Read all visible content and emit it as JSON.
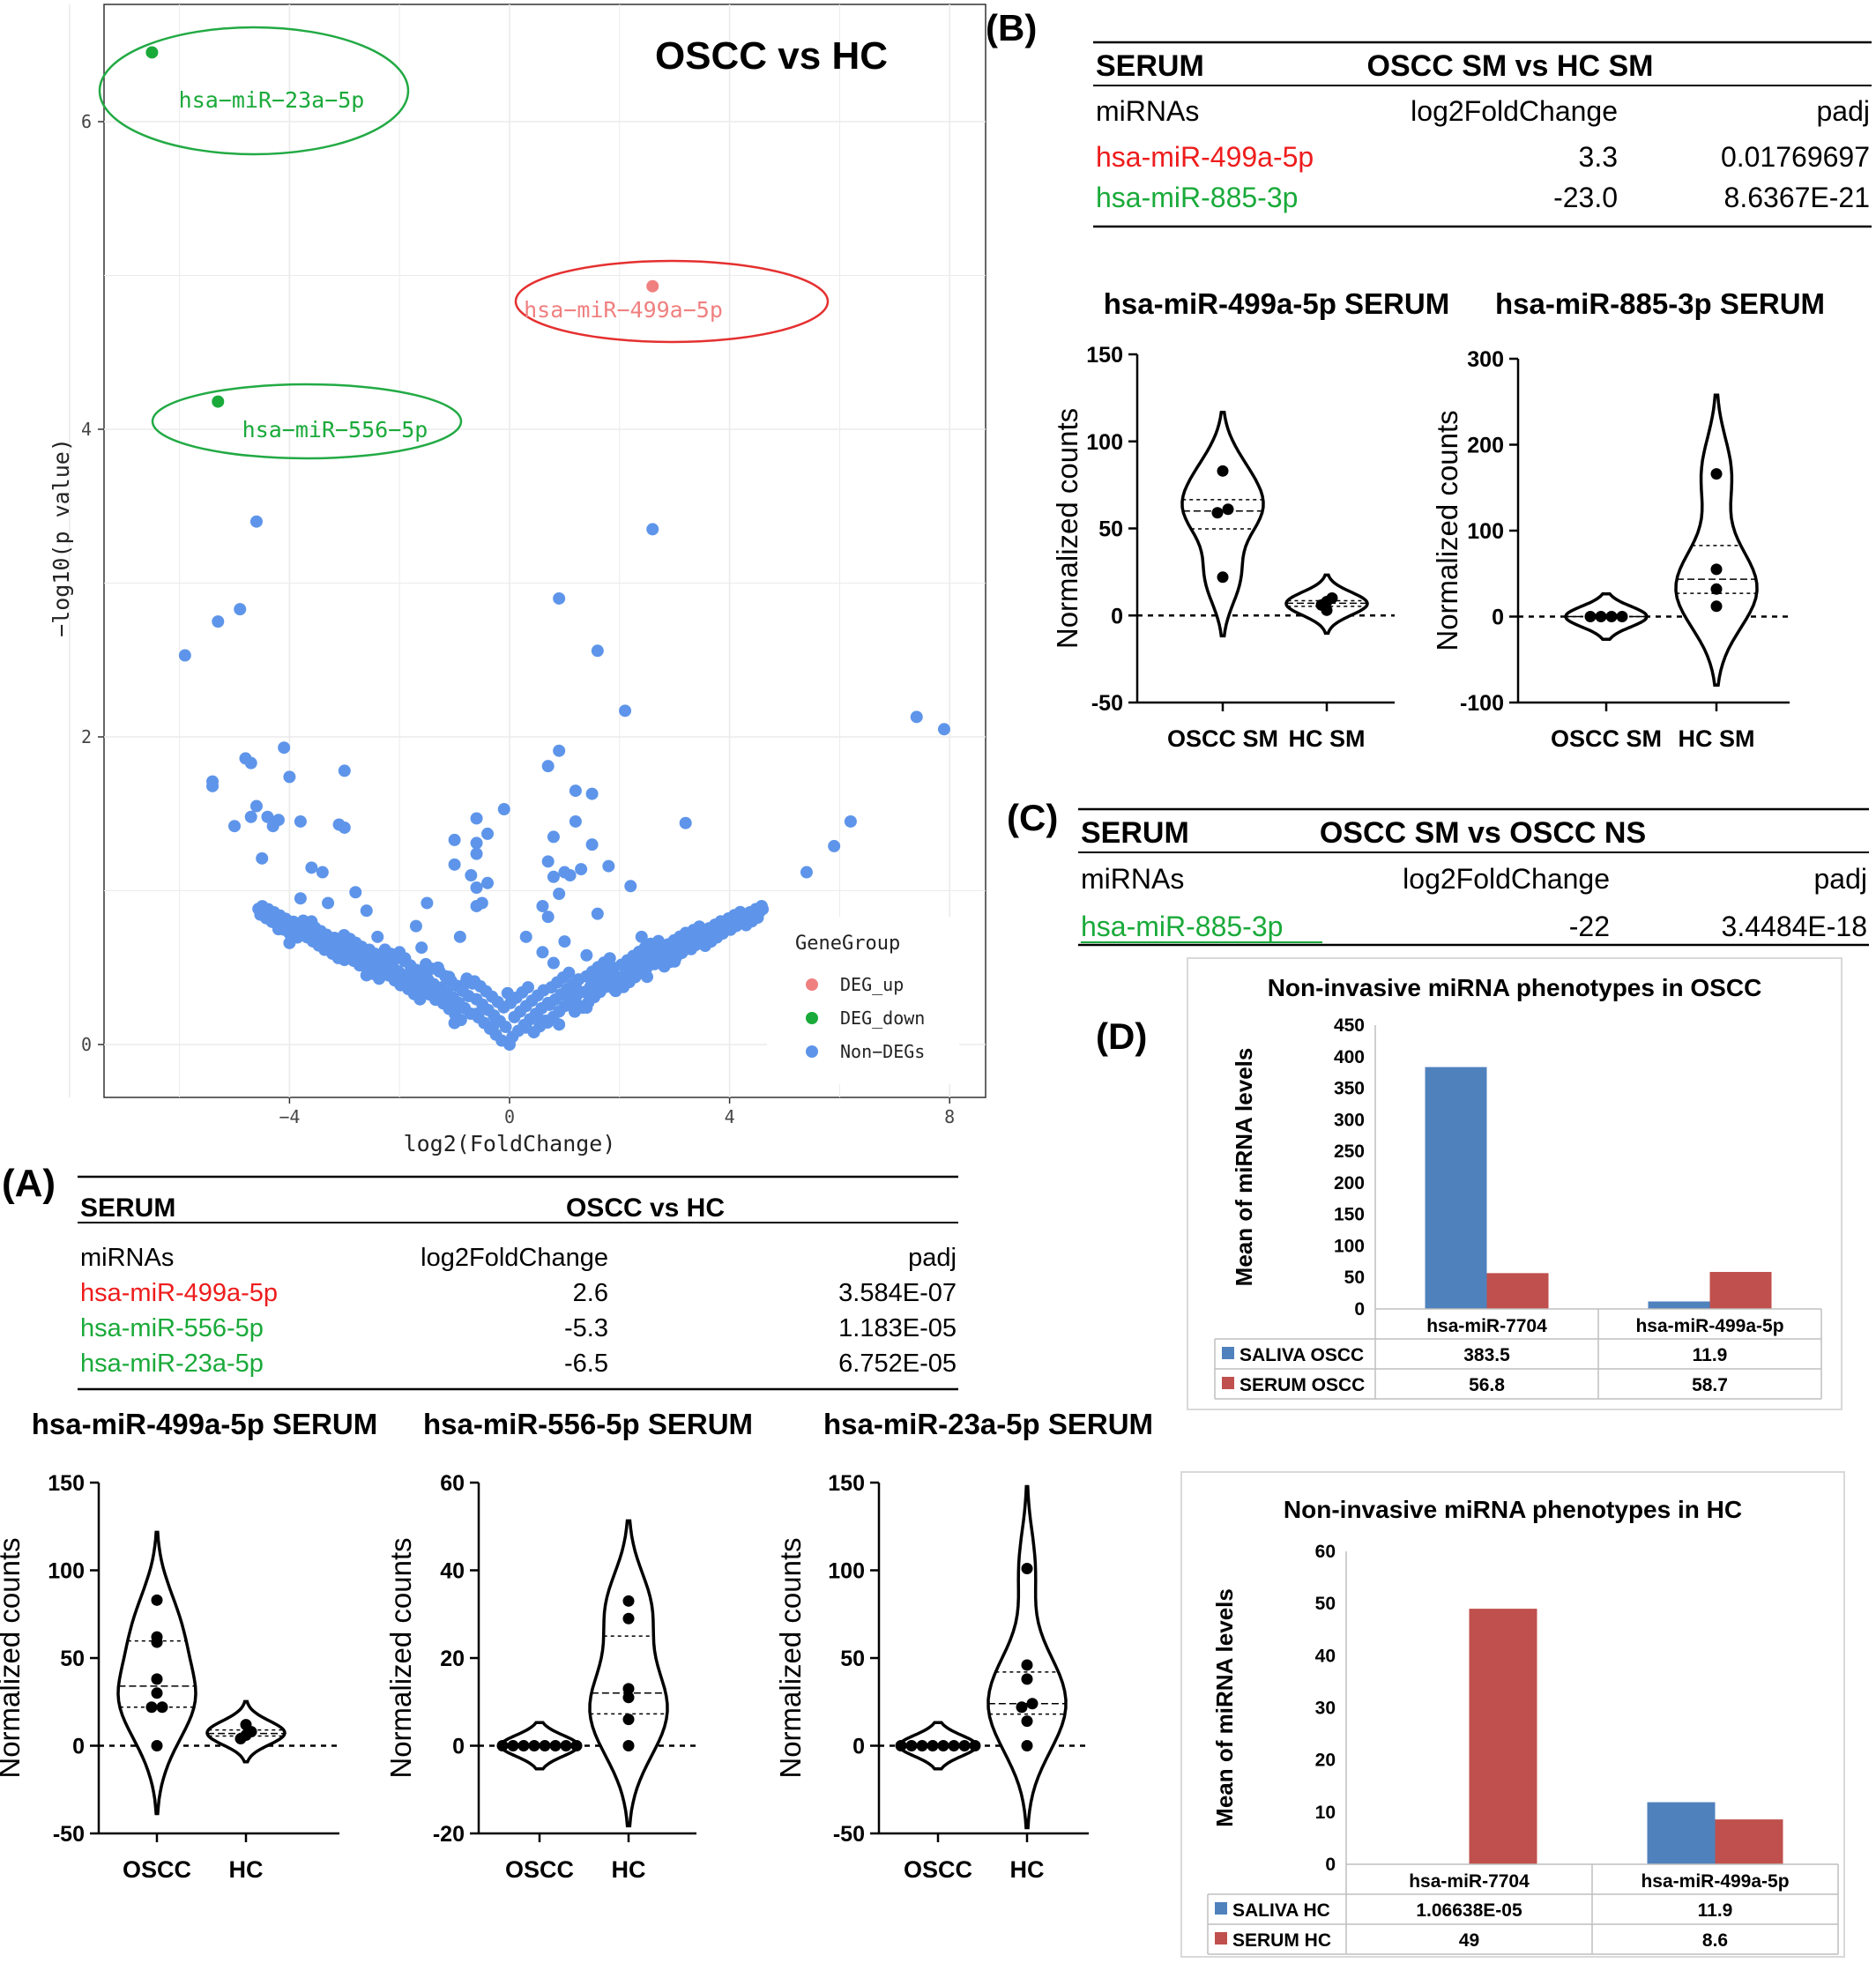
{
  "volcano": {
    "title": "OSCC vs HC",
    "xlabel": "log2(FoldChange)",
    "ylabel": "−log10(p value)",
    "xticks": [
      -4,
      0,
      4,
      8
    ],
    "yticks": [
      0,
      2,
      4,
      6
    ],
    "legend_title": "GeneGroup",
    "legend": [
      {
        "name": "DEG_up",
        "color": "#f08080"
      },
      {
        "name": "DEG_down",
        "color": "#1aaa3a"
      },
      {
        "name": "Non−DEGs",
        "color": "#5e95ea"
      }
    ],
    "labels": [
      {
        "text": "hsa−miR−23a−5p",
        "group": "down",
        "x": -6.5,
        "y": 6.45
      },
      {
        "text": "hsa−miR−499a−5p",
        "group": "up",
        "x": 2.6,
        "y": 4.93
      },
      {
        "text": "hsa−miR−556−5p",
        "group": "down",
        "x": -5.3,
        "y": 4.18
      }
    ],
    "nondeg_points": [
      [
        -4.6,
        3.4
      ],
      [
        2.6,
        3.35
      ],
      [
        0.9,
        2.9
      ],
      [
        -4.9,
        2.83
      ],
      [
        -5.3,
        2.75
      ],
      [
        -5.9,
        2.53
      ],
      [
        1.6,
        2.56
      ],
      [
        2.1,
        2.17
      ],
      [
        7.4,
        2.13
      ],
      [
        7.9,
        2.05
      ],
      [
        -4.1,
        1.93
      ],
      [
        0.9,
        1.91
      ],
      [
        -4.8,
        1.86
      ],
      [
        -4.7,
        1.83
      ],
      [
        0.7,
        1.81
      ],
      [
        -3.0,
        1.78
      ],
      [
        -5.4,
        1.71
      ],
      [
        -4.0,
        1.74
      ],
      [
        -5.4,
        1.68
      ],
      [
        1.2,
        1.65
      ],
      [
        1.5,
        1.63
      ],
      [
        -4.6,
        1.55
      ],
      [
        -0.1,
        1.53
      ],
      [
        -4.7,
        1.48
      ],
      [
        -4.4,
        1.48
      ],
      [
        -4.2,
        1.46
      ],
      [
        -3.8,
        1.45
      ],
      [
        -3.1,
        1.43
      ],
      [
        -5.0,
        1.42
      ],
      [
        -4.3,
        1.42
      ],
      [
        6.2,
        1.45
      ],
      [
        3.2,
        1.44
      ],
      [
        1.2,
        1.45
      ],
      [
        -3.0,
        1.41
      ],
      [
        -0.6,
        1.47
      ],
      [
        -0.4,
        1.37
      ],
      [
        0.8,
        1.35
      ],
      [
        -1.0,
        1.33
      ],
      [
        -0.6,
        1.31
      ],
      [
        5.9,
        1.29
      ],
      [
        -4.5,
        1.21
      ],
      [
        -0.6,
        1.24
      ],
      [
        1.5,
        1.3
      ],
      [
        -1.0,
        1.17
      ],
      [
        0.7,
        1.19
      ],
      [
        1.8,
        1.16
      ],
      [
        -3.6,
        1.15
      ],
      [
        5.4,
        1.12
      ],
      [
        -3.4,
        1.12
      ],
      [
        -0.7,
        1.1
      ],
      [
        0.8,
        1.09
      ],
      [
        1.3,
        1.14
      ],
      [
        2.2,
        1.03
      ],
      [
        -0.6,
        1.02
      ],
      [
        1.1,
        1.1
      ],
      [
        -0.4,
        1.05
      ],
      [
        -2.8,
        0.99
      ],
      [
        -0.6,
        0.9
      ],
      [
        0.9,
        0.98
      ],
      [
        1.0,
        1.12
      ],
      [
        0.6,
        0.9
      ],
      [
        -3.8,
        0.95
      ],
      [
        -3.3,
        0.92
      ],
      [
        -1.5,
        0.92
      ],
      [
        -0.5,
        0.92
      ],
      [
        0.7,
        0.83
      ],
      [
        1.6,
        0.85
      ],
      [
        -3.6,
        0.8
      ],
      [
        -2.6,
        0.87
      ],
      [
        4.6,
        0.88
      ],
      [
        4.4,
        0.83
      ],
      [
        -1.7,
        0.77
      ],
      [
        -4.2,
        0.75
      ],
      [
        2.4,
        0.7
      ],
      [
        -0.9,
        0.7
      ],
      [
        0.3,
        0.7
      ],
      [
        4.2,
        0.8
      ],
      [
        3.6,
        0.72
      ],
      [
        -2.4,
        0.7
      ],
      [
        -3.5,
        0.68
      ],
      [
        1.0,
        0.67
      ],
      [
        3.3,
        0.62
      ],
      [
        -4.0,
        0.66
      ],
      [
        -2.0,
        0.6
      ],
      [
        -1.6,
        0.63
      ],
      [
        -3.2,
        0.6
      ],
      [
        0.6,
        0.6
      ],
      [
        1.4,
        0.58
      ],
      [
        3.0,
        0.54
      ],
      [
        2.8,
        0.52
      ],
      [
        -3.0,
        0.55
      ],
      [
        -1.9,
        0.56
      ],
      [
        -1.3,
        0.5
      ],
      [
        0.8,
        0.53
      ],
      [
        2.1,
        0.52
      ],
      [
        -2.3,
        0.47
      ],
      [
        -2.6,
        0.45
      ],
      [
        -1.1,
        0.44
      ],
      [
        1.6,
        0.46
      ],
      [
        2.5,
        0.44
      ],
      [
        -2.0,
        0.4
      ],
      [
        -1.6,
        0.38
      ],
      [
        -0.8,
        0.4
      ],
      [
        1.2,
        0.38
      ],
      [
        1.9,
        0.36
      ],
      [
        -1.3,
        0.32
      ],
      [
        1.1,
        0.3
      ],
      [
        -0.9,
        0.25
      ],
      [
        0.7,
        0.27
      ],
      [
        1.4,
        0.24
      ],
      [
        -0.6,
        0.2
      ],
      [
        0.5,
        0.19
      ],
      [
        -1.0,
        0.14
      ],
      [
        -0.3,
        0.12
      ],
      [
        0.3,
        0.11
      ],
      [
        0.9,
        0.13
      ]
    ]
  },
  "panel_labels": {
    "a": "(A)",
    "b": "(B)",
    "c": "(C)",
    "d": "(D)"
  },
  "table_a": {
    "title_left": "SERUM",
    "title_center": "OSCC vs HC",
    "headers": [
      "miRNAs",
      "log2FoldChange",
      "padj"
    ],
    "rows": [
      {
        "mirna": "hsa-miR-499a-5p",
        "lfc": "2.6",
        "padj": "3.584E-07",
        "color": "#ee1c1c"
      },
      {
        "mirna": "hsa-miR-556-5p",
        "lfc": "-5.3",
        "padj": "1.183E-05",
        "color": "#1aaa3a"
      },
      {
        "mirna": "hsa-miR-23a-5p",
        "lfc": "-6.5",
        "padj": "6.752E-05",
        "color": "#1aaa3a"
      }
    ]
  },
  "table_b": {
    "title_left": "SERUM",
    "title_center": "OSCC SM vs HC SM",
    "headers": [
      "miRNAs",
      "log2FoldChange",
      "padj"
    ],
    "rows": [
      {
        "mirna": "hsa-miR-499a-5p",
        "lfc": "3.3",
        "padj": "0.01769697",
        "color": "#ee1c1c"
      },
      {
        "mirna": "hsa-miR-885-3p",
        "lfc": "-23.0",
        "padj": "8.6367E-21",
        "color": "#1aaa3a"
      }
    ]
  },
  "table_c": {
    "title_left": "SERUM",
    "title_center": "OSCC SM vs OSCC NS",
    "headers": [
      "miRNAs",
      "log2FoldChange",
      "padj"
    ],
    "rows": [
      {
        "mirna": "hsa-miR-885-3p",
        "lfc": "-22",
        "padj": "3.4484E-18",
        "color": "#1aaa3a"
      }
    ]
  },
  "violins_b": [
    {
      "title": "hsa-miR-499a-5p SERUM",
      "ylabel": "Normalized counts",
      "yticks": [
        -50,
        0,
        50,
        100,
        150
      ],
      "groups": [
        {
          "name": "OSCC SM",
          "points": [
            83,
            61,
            59,
            22
          ]
        },
        {
          "name": "HC SM",
          "points": [
            10,
            8,
            6,
            3
          ]
        }
      ]
    },
    {
      "title": "hsa-miR-885-3p SERUM",
      "ylabel": "Normalized counts",
      "yticks": [
        -100,
        0,
        100,
        200,
        300
      ],
      "groups": [
        {
          "name": "OSCC SM",
          "points": [
            0,
            0,
            0,
            0
          ]
        },
        {
          "name": "HC SM",
          "points": [
            166,
            55,
            32,
            12
          ]
        }
      ]
    }
  ],
  "violins_a": [
    {
      "title": "hsa-miR-499a-5p SERUM",
      "ylabel": "Normalized counts",
      "yticks": [
        -50,
        0,
        50,
        100,
        150
      ],
      "groups": [
        {
          "name": "OSCC",
          "points": [
            83,
            62,
            59,
            38,
            30,
            22,
            22,
            0
          ]
        },
        {
          "name": "HC",
          "points": [
            12,
            8,
            6,
            4
          ]
        }
      ]
    },
    {
      "title": "hsa-miR-556-5p SERUM",
      "ylabel": "Normalized counts",
      "yticks": [
        -20,
        0,
        20,
        40,
        60
      ],
      "groups": [
        {
          "name": "OSCC",
          "points": [
            0,
            0,
            0,
            0,
            0,
            0,
            0,
            0
          ]
        },
        {
          "name": "HC",
          "points": [
            33,
            29,
            13,
            11,
            6,
            0
          ]
        }
      ]
    },
    {
      "title": "hsa-miR-23a-5p SERUM",
      "ylabel": "Normalized counts",
      "yticks": [
        -50,
        0,
        50,
        100,
        150
      ],
      "groups": [
        {
          "name": "OSCC",
          "points": [
            0,
            0,
            0,
            0,
            0,
            0,
            0,
            0
          ]
        },
        {
          "name": "HC",
          "points": [
            101,
            46,
            38,
            24,
            22,
            14,
            0
          ]
        }
      ]
    }
  ],
  "bar_oscc": {
    "title": "Non-invasive miRNA phenotypes in OSCC",
    "ylabel": "Mean of miRNA levels",
    "yticks": [
      0,
      50,
      100,
      150,
      200,
      250,
      300,
      350,
      400,
      450
    ],
    "ylim": [
      0,
      450
    ],
    "categories": [
      "hsa-miR-7704",
      "hsa-miR-499a-5p"
    ],
    "series": [
      {
        "name": "SALIVA OSCC",
        "color": "#4f81bd",
        "values": [
          383.5,
          11.9
        ],
        "labels": [
          "383.5",
          "11.9"
        ]
      },
      {
        "name": "SERUM OSCC",
        "color": "#c0504d",
        "values": [
          56.8,
          58.7
        ],
        "labels": [
          "56.8",
          "58.7"
        ]
      }
    ]
  },
  "bar_hc": {
    "title": "Non-invasive miRNA phenotypes in HC",
    "ylabel": "Mean of miRNA levels",
    "yticks": [
      0,
      10,
      20,
      30,
      40,
      50,
      60
    ],
    "ylim": [
      0,
      60
    ],
    "categories": [
      "hsa-miR-7704",
      "hsa-miR-499a-5p"
    ],
    "series": [
      {
        "name": "SALIVA HC",
        "color": "#4f81bd",
        "values": [
          1.06638e-05,
          11.9
        ],
        "labels": [
          "1.06638E-05",
          "11.9"
        ]
      },
      {
        "name": "SERUM HC",
        "color": "#c0504d",
        "values": [
          49,
          8.6
        ],
        "labels": [
          "49",
          "8.6"
        ]
      }
    ]
  }
}
